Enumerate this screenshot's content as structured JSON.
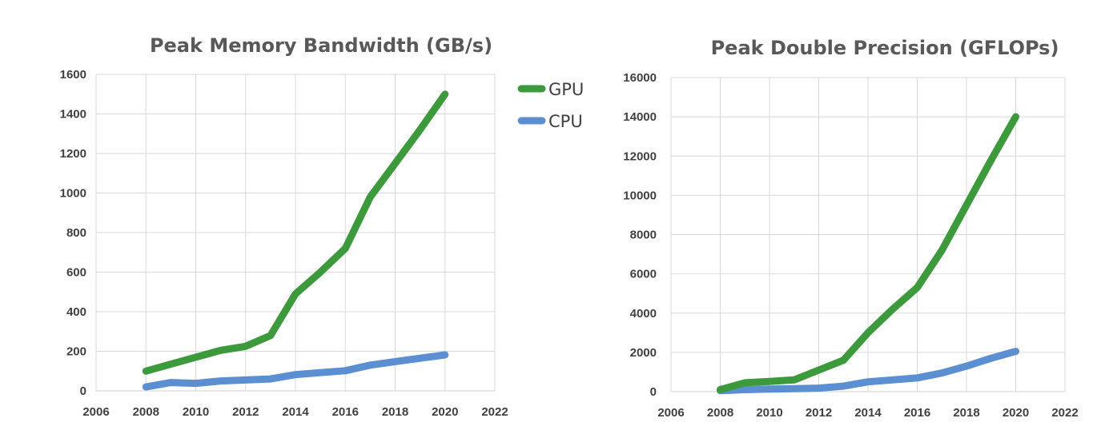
{
  "colors": {
    "gpu": "#3c9a3c",
    "cpu": "#5b8fd1",
    "title": "#595959",
    "text": "#404040",
    "grid": "#d9d9d9"
  },
  "legend": {
    "items": [
      {
        "label": "GPU",
        "color": "#3c9a3c"
      },
      {
        "label": "CPU",
        "color": "#5b8fd1"
      }
    ]
  },
  "chart_data": [
    {
      "type": "line",
      "title": "Peak Memory Bandwidth (GB/s)",
      "xlabel": "",
      "ylabel": "",
      "xlim": [
        2006,
        2022
      ],
      "ylim": [
        0,
        1600
      ],
      "x_ticks": [
        2006,
        2008,
        2010,
        2012,
        2014,
        2016,
        2018,
        2020,
        2022
      ],
      "y_ticks": [
        0,
        200,
        400,
        600,
        800,
        1000,
        1200,
        1400,
        1600
      ],
      "grid": true,
      "series": [
        {
          "name": "GPU",
          "color": "#3c9a3c",
          "x": [
            2008,
            2009,
            2010,
            2011,
            2012,
            2013,
            2014,
            2015,
            2016,
            2017,
            2018,
            2019,
            2020
          ],
          "y": [
            100,
            135,
            170,
            205,
            225,
            280,
            490,
            600,
            720,
            980,
            1150,
            1320,
            1500
          ]
        },
        {
          "name": "CPU",
          "color": "#5b8fd1",
          "x": [
            2008,
            2009,
            2010,
            2011,
            2012,
            2013,
            2014,
            2015,
            2016,
            2017,
            2018,
            2019,
            2020
          ],
          "y": [
            20,
            42,
            38,
            50,
            55,
            60,
            82,
            92,
            102,
            130,
            148,
            165,
            182
          ]
        }
      ]
    },
    {
      "type": "line",
      "title": "Peak Double Precision (GFLOPs)",
      "xlabel": "",
      "ylabel": "",
      "xlim": [
        2006,
        2022
      ],
      "ylim": [
        0,
        16000
      ],
      "x_ticks": [
        2006,
        2008,
        2010,
        2012,
        2014,
        2016,
        2018,
        2020,
        2022
      ],
      "y_ticks": [
        0,
        2000,
        4000,
        6000,
        8000,
        10000,
        12000,
        14000,
        16000
      ],
      "grid": true,
      "series": [
        {
          "name": "GPU",
          "color": "#3c9a3c",
          "x": [
            2008,
            2009,
            2010,
            2011,
            2012,
            2013,
            2014,
            2015,
            2016,
            2017,
            2018,
            2019,
            2020
          ],
          "y": [
            100,
            450,
            520,
            600,
            1100,
            1600,
            3000,
            4200,
            5300,
            7200,
            9500,
            11800,
            14000
          ]
        },
        {
          "name": "CPU",
          "color": "#5b8fd1",
          "x": [
            2008,
            2009,
            2010,
            2011,
            2012,
            2013,
            2014,
            2015,
            2016,
            2017,
            2018,
            2019,
            2020
          ],
          "y": [
            50,
            100,
            130,
            150,
            180,
            280,
            500,
            600,
            700,
            950,
            1300,
            1700,
            2050
          ]
        }
      ]
    }
  ]
}
